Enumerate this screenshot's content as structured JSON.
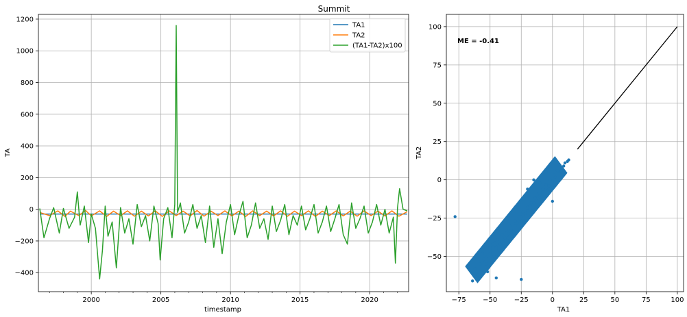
{
  "chart_data": [
    {
      "type": "line",
      "title": "Summit",
      "xlabel": "timestamp",
      "ylabel": "TA",
      "xlim": [
        1996.2,
        2022.8
      ],
      "ylim": [
        -520,
        1230
      ],
      "x_ticks": [
        2000,
        2005,
        2010,
        2015,
        2020
      ],
      "y_ticks": [
        -400,
        -200,
        0,
        200,
        400,
        600,
        800,
        1000,
        1200
      ],
      "grid": true,
      "legend": "top-right",
      "series": [
        {
          "name": "TA1",
          "color": "#1f77b4",
          "x": [
            1996.3,
            1998.0,
            2000.0,
            2003.0,
            2006.0,
            2010.0,
            2014.0,
            2018.0,
            2022.7
          ],
          "y": [
            -30,
            -30,
            -30,
            -30,
            -30,
            -30,
            -30,
            -30,
            -30
          ]
        },
        {
          "name": "TA2",
          "color": "#ff7f0e",
          "x": [
            1996.3,
            1997.0,
            1997.6,
            1998.1,
            1998.5,
            1999.1,
            1999.6,
            2000.0,
            2000.6,
            2001.1,
            2001.6,
            2002.1,
            2002.6,
            2003.1,
            2003.6,
            2004.1,
            2004.6,
            2005.1,
            2005.6,
            2006.1,
            2006.6,
            2007.1,
            2007.6,
            2008.1,
            2008.6,
            2009.1,
            2009.6,
            2010.1,
            2010.6,
            2011.1,
            2011.6,
            2012.1,
            2012.6,
            2013.1,
            2013.6,
            2014.1,
            2014.6,
            2015.1,
            2015.6,
            2016.1,
            2016.6,
            2017.1,
            2017.6,
            2018.1,
            2018.6,
            2019.1,
            2019.6,
            2020.1,
            2020.6,
            2021.1,
            2021.6,
            2022.1,
            2022.7
          ],
          "y": [
            -20,
            -40,
            -10,
            -45,
            -12,
            -40,
            -8,
            -42,
            -10,
            -45,
            -12,
            -40,
            -10,
            -44,
            -12,
            -42,
            -10,
            -45,
            -10,
            -40,
            -12,
            -42,
            -8,
            -44,
            -12,
            -40,
            -10,
            -42,
            -12,
            -45,
            -10,
            -40,
            -12,
            -42,
            -10,
            -44,
            -12,
            -40,
            -10,
            -45,
            -12,
            -40,
            -10,
            -42,
            -12,
            -44,
            -10,
            -40,
            -12,
            -42,
            -10,
            -44,
            -15
          ]
        },
        {
          "name": "(TA1-TA2)x100",
          "color": "#2ca02c",
          "x": [
            1996.3,
            1996.6,
            1997.0,
            1997.3,
            1997.7,
            1998.0,
            1998.4,
            1998.8,
            1999.0,
            1999.2,
            1999.5,
            1999.8,
            2000.0,
            2000.3,
            2000.6,
            2000.8,
            2001.0,
            2001.2,
            2001.5,
            2001.8,
            2002.1,
            2002.4,
            2002.7,
            2003.0,
            2003.3,
            2003.6,
            2003.9,
            2004.2,
            2004.5,
            2004.8,
            2004.95,
            2005.2,
            2005.5,
            2005.8,
            2006.0,
            2006.1,
            2006.2,
            2006.4,
            2006.7,
            2007.0,
            2007.3,
            2007.6,
            2007.9,
            2008.2,
            2008.5,
            2008.8,
            2009.1,
            2009.4,
            2009.7,
            2010.0,
            2010.3,
            2010.6,
            2010.9,
            2011.2,
            2011.5,
            2011.8,
            2012.1,
            2012.4,
            2012.7,
            2013.0,
            2013.3,
            2013.6,
            2013.9,
            2014.2,
            2014.5,
            2014.8,
            2015.1,
            2015.4,
            2015.7,
            2016.0,
            2016.3,
            2016.6,
            2016.9,
            2017.2,
            2017.5,
            2017.8,
            2018.1,
            2018.4,
            2018.7,
            2019.0,
            2019.3,
            2019.6,
            2019.9,
            2020.2,
            2020.5,
            2020.8,
            2021.1,
            2021.4,
            2021.7,
            2021.85,
            2022.0,
            2022.15,
            2022.4,
            2022.7
          ],
          "y": [
            5,
            -180,
            -60,
            10,
            -150,
            5,
            -120,
            -50,
            110,
            -100,
            20,
            -210,
            -30,
            -120,
            -440,
            -260,
            20,
            -170,
            -80,
            -370,
            10,
            -150,
            -60,
            -220,
            30,
            -110,
            -40,
            -200,
            20,
            -90,
            -320,
            -60,
            10,
            -180,
            30,
            1160,
            -20,
            40,
            -150,
            -80,
            30,
            -120,
            -40,
            -210,
            20,
            -240,
            -60,
            -280,
            -80,
            30,
            -160,
            -40,
            50,
            -180,
            -100,
            40,
            -120,
            -60,
            -190,
            20,
            -140,
            -70,
            30,
            -160,
            -40,
            -100,
            20,
            -130,
            -60,
            30,
            -150,
            -80,
            20,
            -140,
            -60,
            30,
            -160,
            -220,
            40,
            -120,
            -60,
            20,
            -150,
            -80,
            30,
            -100,
            0,
            -150,
            -50,
            -340,
            10,
            130,
            0,
            -10
          ]
        }
      ]
    },
    {
      "type": "scatter",
      "title": "",
      "xlabel": "TA1",
      "ylabel": "TA2",
      "xlim": [
        -85,
        105
      ],
      "ylim": [
        -73,
        108
      ],
      "x_ticks": [
        -75,
        -50,
        -25,
        0,
        25,
        50,
        75,
        100
      ],
      "y_ticks": [
        -50,
        -25,
        0,
        25,
        50,
        75,
        100
      ],
      "grid": true,
      "annotation": "ME = -0.41",
      "reference_line": {
        "x": [
          20,
          100
        ],
        "y": [
          20,
          100
        ],
        "color": "#000000"
      },
      "points_color": "#1f77b4",
      "points": {
        "x": [
          -78,
          -64,
          -62,
          -58,
          -55,
          -52,
          -50,
          -48,
          -45,
          -42,
          -40,
          -38,
          -35,
          -33,
          -30,
          -28,
          -26,
          -25,
          -22,
          -20,
          -18,
          -15,
          -12,
          -10,
          -8,
          -5,
          -3,
          0,
          2,
          5,
          7,
          9,
          10,
          12,
          13,
          -50,
          -48,
          -46,
          -44,
          -40,
          -37,
          -34,
          -30,
          -27,
          -24,
          -20,
          -17,
          -14,
          -11,
          -8,
          -5,
          -2,
          1,
          4,
          -56,
          -60,
          -53,
          -47,
          -43,
          -36,
          -31,
          -23,
          -16,
          -9,
          -4,
          -25,
          -20,
          -15,
          -10,
          -5,
          0,
          -45,
          -52
        ],
        "y": [
          -24,
          -66,
          -58,
          -55,
          -52,
          -50,
          -48,
          -46,
          -44,
          -42,
          -40,
          -38,
          -35,
          -33,
          -30,
          -28,
          -26,
          -24,
          -22,
          -20,
          -17,
          -15,
          -12,
          -10,
          -8,
          -6,
          -4,
          -1,
          2,
          4,
          6,
          9,
          11,
          12,
          13,
          -44,
          -42,
          -41,
          -39,
          -36,
          -33,
          -30,
          -27,
          -24,
          -21,
          -18,
          -15,
          -12,
          -9,
          -6,
          -3,
          0,
          3,
          6,
          -48,
          -62,
          -55,
          -50,
          -46,
          -38,
          -34,
          -27,
          -20,
          -13,
          -7,
          -65,
          -6,
          0,
          -2,
          5,
          -14,
          -64,
          -60
        ]
      }
    }
  ]
}
